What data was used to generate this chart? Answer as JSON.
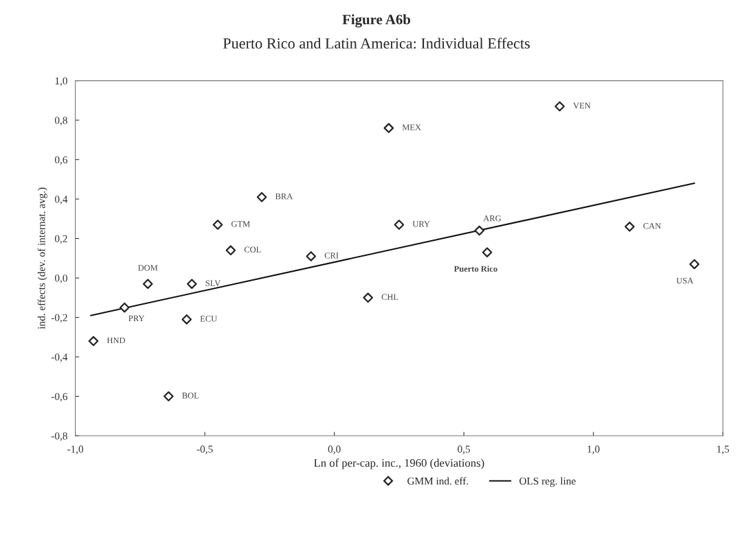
{
  "chart_data": {
    "type": "scatter",
    "title": "Figure A6b",
    "subtitle": "Puerto Rico and Latin America: Individual Effects",
    "xlabel": "Ln of per-cap. inc., 1960 (deviations)",
    "ylabel": "ind. effects (dev. of internat. avg.)",
    "series": [
      {
        "name": "GMM ind. eff.",
        "color": "#222222",
        "marker": "diamond",
        "x": [
          0.21,
          -0.28,
          -0.45,
          -0.4,
          -0.09,
          -0.72,
          -0.55,
          -0.81,
          -0.57,
          0.13,
          -0.93,
          -0.64,
          0.87,
          0.25,
          0.56,
          0.59,
          1.14,
          1.39
        ],
        "values": [
          0.76,
          0.41,
          0.27,
          0.14,
          0.11,
          -0.03,
          -0.03,
          -0.15,
          -0.21,
          -0.1,
          -0.32,
          -0.6,
          0.87,
          0.27,
          0.24,
          0.13,
          0.26,
          0.07
        ]
      },
      {
        "name": "OLS reg. line",
        "type": "line",
        "color": "#111111",
        "marker": "none",
        "line_style": "solid",
        "x": [
          -0.94,
          1.39
        ],
        "values": [
          -0.19,
          0.48
        ]
      }
    ],
    "annotations": [
      {
        "text": "MEX",
        "x": 0.21,
        "y": 0.76
      },
      {
        "text": "BRA",
        "x": -0.28,
        "y": 0.41
      },
      {
        "text": "GTM",
        "x": -0.45,
        "y": 0.27
      },
      {
        "text": "COL",
        "x": -0.4,
        "y": 0.14
      },
      {
        "text": "CRI",
        "x": -0.09,
        "y": 0.11
      },
      {
        "text": "DOM",
        "x": -0.72,
        "y": -0.03
      },
      {
        "text": "SLV",
        "x": -0.55,
        "y": -0.03
      },
      {
        "text": "PRY",
        "x": -0.81,
        "y": -0.15
      },
      {
        "text": "ECU",
        "x": -0.57,
        "y": -0.21
      },
      {
        "text": "CHL",
        "x": 0.13,
        "y": -0.1
      },
      {
        "text": "HND",
        "x": -0.93,
        "y": -0.32
      },
      {
        "text": "BOL",
        "x": -0.64,
        "y": -0.6
      },
      {
        "text": "VEN",
        "x": 0.87,
        "y": 0.87
      },
      {
        "text": "URY",
        "x": 0.25,
        "y": 0.27
      },
      {
        "text": "ARG",
        "x": 0.56,
        "y": 0.24
      },
      {
        "text": "Puerto Rico",
        "x": 0.59,
        "y": 0.13
      },
      {
        "text": "CAN",
        "x": 1.14,
        "y": 0.26
      },
      {
        "text": "USA",
        "x": 1.39,
        "y": 0.07
      }
    ],
    "xlim": [
      -1.0,
      1.5
    ],
    "xticks": [
      {
        "value": -1.0,
        "label": "-1,0"
      },
      {
        "value": -0.5,
        "label": "-0,5"
      },
      {
        "value": 0.0,
        "label": "0,0"
      },
      {
        "value": 0.5,
        "label": "0,5"
      },
      {
        "value": 1.0,
        "label": "1,0"
      },
      {
        "value": 1.5,
        "label": "1,5"
      }
    ],
    "ylim": [
      -0.8,
      1.0
    ],
    "yticks": [
      {
        "value": -0.8,
        "label": "-0,8"
      },
      {
        "value": -0.6,
        "label": "-0,6"
      },
      {
        "value": -0.4,
        "label": "-0,4"
      },
      {
        "value": -0.2,
        "label": "-0,2"
      },
      {
        "value": 0.0,
        "label": "0,0"
      },
      {
        "value": 0.2,
        "label": "0,2"
      },
      {
        "value": 0.4,
        "label": "0,4"
      },
      {
        "value": 0.6,
        "label": "0,6"
      },
      {
        "value": 0.8,
        "label": "0,8"
      },
      {
        "value": 1.0,
        "label": "1,0"
      }
    ],
    "grid": false,
    "legend": "bottom"
  }
}
